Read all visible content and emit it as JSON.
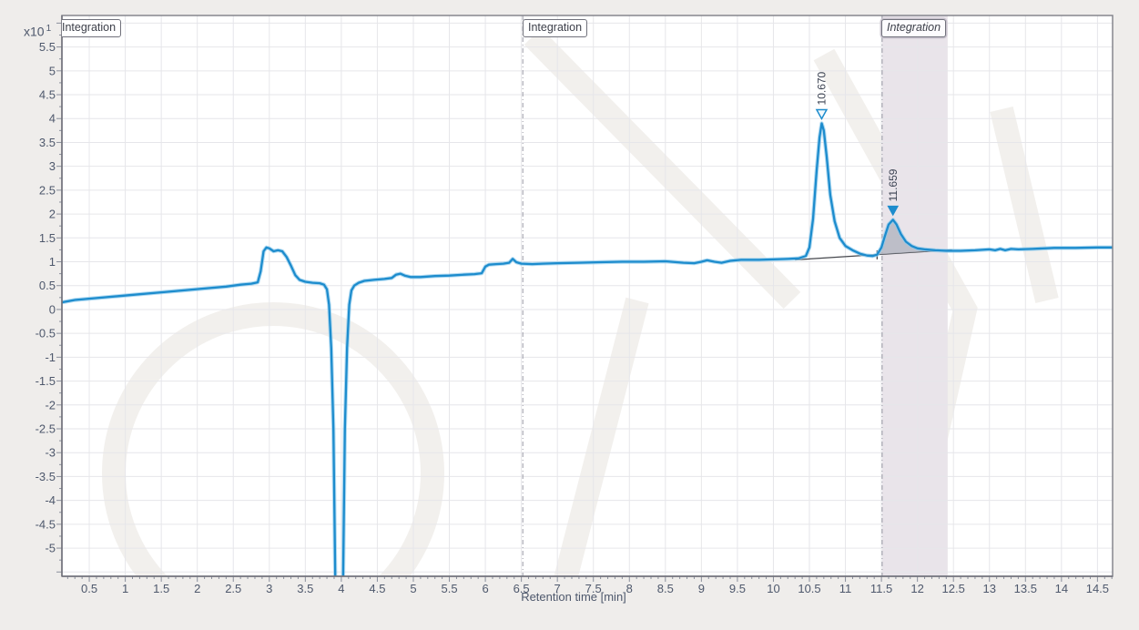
{
  "window": {
    "background": "#efedeb"
  },
  "colors": {
    "plot_background": "#ffffff",
    "plot_border": "#85868e",
    "grid": "#e6e6ea",
    "tick": "#8a8f9c",
    "tick_text": "#4e586c",
    "trace": "#1d8ccd",
    "trace_halo": "#8ecbec",
    "dashed_separator": "#9b9ba6",
    "shaded_region": "#e9e4ea",
    "integration_baseline": "#44464c",
    "peak_area_fill": "#adb2bc",
    "peak_label_text": "#3b4252",
    "watermark": "#d8d2c9"
  },
  "y_axis": {
    "multiplier": "x10",
    "exponent": "1",
    "tick_labels": [
      "5.5",
      "5",
      "4.5",
      "4",
      "3.5",
      "3",
      "2.5",
      "2",
      "1.5",
      "1",
      "0.5",
      "0",
      "-0.5",
      "-1",
      "-1.5",
      "-2",
      "-2.5",
      "-3",
      "-3.5",
      "-4",
      "-4.5",
      "-5"
    ]
  },
  "x_axis": {
    "title": "Retention time [min]",
    "tick_labels": [
      "0.5",
      "1",
      "1.5",
      "2",
      "2.5",
      "3",
      "3.5",
      "4",
      "4.5",
      "5",
      "5.5",
      "6",
      "6.5",
      "7",
      "7.5",
      "8",
      "8.5",
      "9",
      "9.5",
      "10",
      "10.5",
      "11",
      "11.5",
      "12",
      "12.5",
      "13",
      "13.5",
      "14",
      "14.5"
    ]
  },
  "regions": [
    {
      "label": "Integration",
      "style": "normal",
      "x_min": 0.12,
      "clipped_at_left_edge": true
    },
    {
      "label": "Integration",
      "style": "normal",
      "x_min": 6.52
    },
    {
      "label": "Integration",
      "style": "italic-selected",
      "x_min": 11.51,
      "shaded_x_max": 12.42
    }
  ],
  "chart_data": {
    "type": "line",
    "title": "",
    "xlabel": "Retention time [min]",
    "ylabel": "x10^1",
    "xlim": [
      0.12,
      14.71
    ],
    "ylim": [
      -5.59,
      6.16
    ],
    "grid": true,
    "separators_x": [
      6.52,
      11.51
    ],
    "shaded_region_x": [
      11.51,
      12.42
    ],
    "integration_baseline": {
      "start": [
        10.3,
        1.04
      ],
      "end": [
        12.48,
        1.25
      ],
      "separator_x": 11.44
    },
    "peaks": [
      {
        "retention_time_label": "10.670",
        "rt": 10.67,
        "apex_value": 3.9,
        "marker": "open-triangle-down",
        "area_filled": false
      },
      {
        "retention_time_label": "11.659",
        "rt": 11.66,
        "apex_value": 1.88,
        "marker": "filled-triangle-down",
        "area_filled": true,
        "fill_x_range": [
          11.44,
          12.45
        ]
      }
    ],
    "trace": {
      "name": "detector-signal",
      "color": "#1d8ccd",
      "points": [
        [
          0.12,
          0.15
        ],
        [
          0.3,
          0.2
        ],
        [
          0.6,
          0.24
        ],
        [
          0.9,
          0.28
        ],
        [
          1.2,
          0.32
        ],
        [
          1.5,
          0.36
        ],
        [
          1.8,
          0.4
        ],
        [
          2.1,
          0.44
        ],
        [
          2.4,
          0.48
        ],
        [
          2.6,
          0.52
        ],
        [
          2.75,
          0.54
        ],
        [
          2.84,
          0.57
        ],
        [
          2.88,
          0.8
        ],
        [
          2.92,
          1.22
        ],
        [
          2.96,
          1.3
        ],
        [
          3.0,
          1.28
        ],
        [
          3.06,
          1.22
        ],
        [
          3.12,
          1.24
        ],
        [
          3.18,
          1.22
        ],
        [
          3.24,
          1.1
        ],
        [
          3.3,
          0.92
        ],
        [
          3.36,
          0.72
        ],
        [
          3.42,
          0.62
        ],
        [
          3.5,
          0.58
        ],
        [
          3.6,
          0.56
        ],
        [
          3.7,
          0.55
        ],
        [
          3.76,
          0.52
        ],
        [
          3.8,
          0.42
        ],
        [
          3.83,
          0.1
        ],
        [
          3.86,
          -0.8
        ],
        [
          3.89,
          -2.5
        ],
        [
          3.92,
          -6.2
        ],
        [
          4.02,
          -6.2
        ],
        [
          4.05,
          -2.5
        ],
        [
          4.08,
          -0.8
        ],
        [
          4.11,
          0.1
        ],
        [
          4.14,
          0.4
        ],
        [
          4.18,
          0.5
        ],
        [
          4.24,
          0.56
        ],
        [
          4.32,
          0.6
        ],
        [
          4.45,
          0.62
        ],
        [
          4.6,
          0.64
        ],
        [
          4.7,
          0.66
        ],
        [
          4.76,
          0.73
        ],
        [
          4.82,
          0.75
        ],
        [
          4.88,
          0.71
        ],
        [
          4.96,
          0.68
        ],
        [
          5.1,
          0.68
        ],
        [
          5.3,
          0.7
        ],
        [
          5.5,
          0.71
        ],
        [
          5.7,
          0.73
        ],
        [
          5.85,
          0.74
        ],
        [
          5.95,
          0.76
        ],
        [
          6.0,
          0.9
        ],
        [
          6.05,
          0.94
        ],
        [
          6.15,
          0.95
        ],
        [
          6.25,
          0.96
        ],
        [
          6.33,
          0.98
        ],
        [
          6.38,
          1.06
        ],
        [
          6.43,
          0.99
        ],
        [
          6.5,
          0.96
        ],
        [
          6.65,
          0.95
        ],
        [
          6.8,
          0.96
        ],
        [
          7.0,
          0.97
        ],
        [
          7.3,
          0.98
        ],
        [
          7.6,
          0.99
        ],
        [
          7.9,
          1.0
        ],
        [
          8.2,
          1.0
        ],
        [
          8.5,
          1.01
        ],
        [
          8.75,
          0.98
        ],
        [
          8.9,
          0.97
        ],
        [
          9.0,
          1.0
        ],
        [
          9.08,
          1.03
        ],
        [
          9.18,
          1.0
        ],
        [
          9.28,
          0.98
        ],
        [
          9.4,
          1.02
        ],
        [
          9.55,
          1.04
        ],
        [
          9.8,
          1.04
        ],
        [
          10.0,
          1.05
        ],
        [
          10.2,
          1.06
        ],
        [
          10.35,
          1.07
        ],
        [
          10.45,
          1.12
        ],
        [
          10.5,
          1.3
        ],
        [
          10.55,
          1.9
        ],
        [
          10.6,
          2.9
        ],
        [
          10.64,
          3.6
        ],
        [
          10.67,
          3.9
        ],
        [
          10.7,
          3.75
        ],
        [
          10.74,
          3.2
        ],
        [
          10.79,
          2.4
        ],
        [
          10.85,
          1.85
        ],
        [
          10.92,
          1.5
        ],
        [
          11.0,
          1.33
        ],
        [
          11.1,
          1.24
        ],
        [
          11.2,
          1.17
        ],
        [
          11.3,
          1.13
        ],
        [
          11.38,
          1.12
        ],
        [
          11.44,
          1.15
        ],
        [
          11.5,
          1.3
        ],
        [
          11.55,
          1.55
        ],
        [
          11.6,
          1.78
        ],
        [
          11.66,
          1.88
        ],
        [
          11.71,
          1.78
        ],
        [
          11.77,
          1.58
        ],
        [
          11.84,
          1.42
        ],
        [
          11.92,
          1.33
        ],
        [
          12.0,
          1.28
        ],
        [
          12.1,
          1.26
        ],
        [
          12.25,
          1.24
        ],
        [
          12.4,
          1.23
        ],
        [
          12.6,
          1.23
        ],
        [
          12.8,
          1.24
        ],
        [
          13.0,
          1.26
        ],
        [
          13.08,
          1.24
        ],
        [
          13.15,
          1.27
        ],
        [
          13.22,
          1.24
        ],
        [
          13.3,
          1.27
        ],
        [
          13.4,
          1.26
        ],
        [
          13.6,
          1.27
        ],
        [
          13.9,
          1.29
        ],
        [
          14.2,
          1.29
        ],
        [
          14.5,
          1.3
        ],
        [
          14.71,
          1.3
        ]
      ]
    }
  }
}
